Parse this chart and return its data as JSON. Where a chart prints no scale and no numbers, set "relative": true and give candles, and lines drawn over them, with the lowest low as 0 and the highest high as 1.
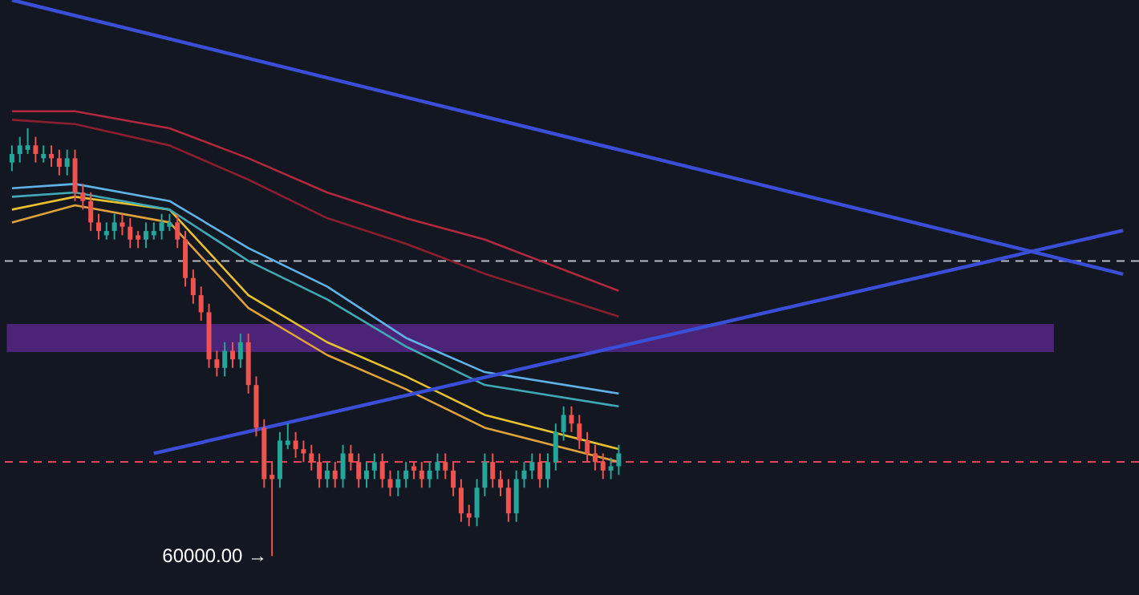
{
  "chart_data": {
    "type": "candlestick",
    "relative": true,
    "categories": [
      null,
      null,
      null,
      null,
      null,
      null,
      null,
      null,
      null,
      null,
      null,
      null,
      null,
      null,
      null,
      null,
      null,
      null,
      null,
      null,
      null,
      null,
      null,
      null,
      null,
      null,
      null,
      null,
      null,
      null,
      null,
      null,
      null,
      null,
      null,
      null,
      null,
      null,
      null,
      null,
      null,
      null,
      null,
      null,
      null,
      null,
      null,
      null,
      null,
      null,
      null,
      null,
      null,
      null,
      null,
      null,
      null,
      null,
      null,
      null,
      null,
      null,
      null,
      null,
      null,
      null,
      null,
      null,
      null,
      null,
      null,
      null,
      null,
      null,
      null,
      null,
      null,
      null
    ],
    "ohlc": [
      [
        0.92,
        0.96,
        0.9,
        0.94
      ],
      [
        0.94,
        0.98,
        0.92,
        0.96
      ],
      [
        0.95,
        1.0,
        0.94,
        0.96
      ],
      [
        0.96,
        0.98,
        0.92,
        0.94
      ],
      [
        0.93,
        0.96,
        0.92,
        0.94
      ],
      [
        0.94,
        0.96,
        0.91,
        0.93
      ],
      [
        0.93,
        0.95,
        0.89,
        0.91
      ],
      [
        0.91,
        0.95,
        0.89,
        0.93
      ],
      [
        0.93,
        0.95,
        0.83,
        0.85
      ],
      [
        0.85,
        0.87,
        0.81,
        0.83
      ],
      [
        0.83,
        0.85,
        0.76,
        0.78
      ],
      [
        0.78,
        0.8,
        0.74,
        0.76
      ],
      [
        0.75,
        0.78,
        0.74,
        0.76
      ],
      [
        0.76,
        0.8,
        0.74,
        0.78
      ],
      [
        0.78,
        0.8,
        0.75,
        0.77
      ],
      [
        0.77,
        0.79,
        0.72,
        0.74
      ],
      [
        0.75,
        0.76,
        0.72,
        0.74
      ],
      [
        0.74,
        0.78,
        0.72,
        0.76
      ],
      [
        0.75,
        0.78,
        0.74,
        0.76
      ],
      [
        0.76,
        0.8,
        0.74,
        0.78
      ],
      [
        0.77,
        0.8,
        0.76,
        0.78
      ],
      [
        0.78,
        0.8,
        0.72,
        0.74
      ],
      [
        0.74,
        0.76,
        0.63,
        0.65
      ],
      [
        0.65,
        0.67,
        0.59,
        0.61
      ],
      [
        0.61,
        0.63,
        0.55,
        0.57
      ],
      [
        0.57,
        0.59,
        0.44,
        0.46
      ],
      [
        0.46,
        0.48,
        0.42,
        0.44
      ],
      [
        0.44,
        0.5,
        0.42,
        0.48
      ],
      [
        0.48,
        0.5,
        0.44,
        0.46
      ],
      [
        0.46,
        0.52,
        0.44,
        0.5
      ],
      [
        0.5,
        0.52,
        0.38,
        0.4
      ],
      [
        0.4,
        0.42,
        0.28,
        0.3
      ],
      [
        0.3,
        0.32,
        0.16,
        0.18
      ],
      [
        0.19,
        0.22,
        0.0,
        0.18
      ],
      [
        0.18,
        0.29,
        0.16,
        0.27
      ],
      [
        0.26,
        0.31,
        0.25,
        0.27
      ],
      [
        0.27,
        0.29,
        0.23,
        0.25
      ],
      [
        0.25,
        0.27,
        0.22,
        0.24
      ],
      [
        0.24,
        0.26,
        0.2,
        0.22
      ],
      [
        0.22,
        0.24,
        0.16,
        0.18
      ],
      [
        0.18,
        0.22,
        0.16,
        0.2
      ],
      [
        0.2,
        0.22,
        0.16,
        0.18
      ],
      [
        0.18,
        0.26,
        0.16,
        0.24
      ],
      [
        0.24,
        0.26,
        0.2,
        0.22
      ],
      [
        0.22,
        0.24,
        0.16,
        0.18
      ],
      [
        0.18,
        0.22,
        0.16,
        0.2
      ],
      [
        0.2,
        0.24,
        0.18,
        0.22
      ],
      [
        0.22,
        0.24,
        0.16,
        0.18
      ],
      [
        0.18,
        0.2,
        0.14,
        0.16
      ],
      [
        0.16,
        0.2,
        0.14,
        0.18
      ],
      [
        0.18,
        0.22,
        0.16,
        0.2
      ],
      [
        0.21,
        0.22,
        0.18,
        0.2
      ],
      [
        0.2,
        0.22,
        0.16,
        0.18
      ],
      [
        0.18,
        0.22,
        0.16,
        0.2
      ],
      [
        0.2,
        0.24,
        0.18,
        0.22
      ],
      [
        0.22,
        0.24,
        0.18,
        0.2
      ],
      [
        0.2,
        0.22,
        0.14,
        0.16
      ],
      [
        0.16,
        0.18,
        0.08,
        0.1
      ],
      [
        0.1,
        0.12,
        0.07,
        0.09
      ],
      [
        0.09,
        0.18,
        0.07,
        0.16
      ],
      [
        0.16,
        0.24,
        0.14,
        0.22
      ],
      [
        0.22,
        0.24,
        0.16,
        0.18
      ],
      [
        0.18,
        0.2,
        0.14,
        0.16
      ],
      [
        0.16,
        0.18,
        0.08,
        0.1
      ],
      [
        0.1,
        0.2,
        0.08,
        0.18
      ],
      [
        0.18,
        0.22,
        0.16,
        0.2
      ],
      [
        0.2,
        0.24,
        0.18,
        0.22
      ],
      [
        0.22,
        0.24,
        0.16,
        0.18
      ],
      [
        0.18,
        0.24,
        0.16,
        0.22
      ],
      [
        0.22,
        0.31,
        0.2,
        0.29
      ],
      [
        0.29,
        0.35,
        0.27,
        0.33
      ],
      [
        0.33,
        0.35,
        0.29,
        0.31
      ],
      [
        0.31,
        0.33,
        0.25,
        0.27
      ],
      [
        0.27,
        0.29,
        0.22,
        0.24
      ],
      [
        0.24,
        0.26,
        0.2,
        0.22
      ],
      [
        0.22,
        0.24,
        0.18,
        0.2
      ],
      [
        0.2,
        0.23,
        0.18,
        0.21
      ],
      [
        0.21,
        0.26,
        0.19,
        0.24
      ]
    ],
    "series": [
      {
        "type": "line",
        "color": "#e8c22e",
        "values": [
          0.81,
          null,
          null,
          null,
          null,
          null,
          null,
          null,
          0.84,
          null,
          null,
          null,
          null,
          null,
          null,
          null,
          null,
          null,
          null,
          null,
          0.81,
          null,
          null,
          null,
          null,
          null,
          null,
          null,
          null,
          null,
          0.61,
          null,
          null,
          null,
          null,
          null,
          null,
          null,
          null,
          null,
          0.5,
          null,
          null,
          null,
          null,
          null,
          null,
          null,
          null,
          null,
          0.42,
          null,
          null,
          null,
          null,
          null,
          null,
          null,
          null,
          null,
          0.33,
          null,
          null,
          null,
          null,
          null,
          null,
          null,
          null,
          null,
          null,
          null,
          null,
          null,
          null,
          null,
          null,
          0.25
        ]
      },
      {
        "type": "line",
        "color": "#e0a23a",
        "values": [
          0.78,
          null,
          null,
          null,
          null,
          null,
          null,
          null,
          0.82,
          null,
          null,
          null,
          null,
          null,
          null,
          null,
          null,
          null,
          null,
          null,
          0.78,
          null,
          null,
          null,
          null,
          null,
          null,
          null,
          null,
          null,
          0.58,
          null,
          null,
          null,
          null,
          null,
          null,
          null,
          null,
          null,
          0.47,
          null,
          null,
          null,
          null,
          null,
          null,
          null,
          null,
          null,
          0.39,
          null,
          null,
          null,
          null,
          null,
          null,
          null,
          null,
          null,
          0.3,
          null,
          null,
          null,
          null,
          null,
          null,
          null,
          null,
          null,
          null,
          null,
          null,
          null,
          null,
          null,
          null,
          0.22
        ]
      },
      {
        "type": "line",
        "color": "#5fb3e8",
        "values": [
          0.86,
          null,
          null,
          null,
          null,
          null,
          null,
          null,
          0.87,
          null,
          null,
          null,
          null,
          null,
          null,
          null,
          null,
          null,
          null,
          null,
          0.83,
          null,
          null,
          null,
          null,
          null,
          null,
          null,
          null,
          null,
          0.72,
          null,
          null,
          null,
          null,
          null,
          null,
          null,
          null,
          null,
          0.63,
          null,
          null,
          null,
          null,
          null,
          null,
          null,
          null,
          null,
          0.51,
          null,
          null,
          null,
          null,
          null,
          null,
          null,
          null,
          null,
          0.43,
          null,
          null,
          null,
          null,
          null,
          null,
          null,
          null,
          null,
          null,
          null,
          null,
          null,
          null,
          null,
          null,
          0.38
        ]
      },
      {
        "type": "line",
        "color": "#3fa9b5",
        "values": [
          0.84,
          null,
          null,
          null,
          null,
          null,
          null,
          null,
          0.85,
          null,
          null,
          null,
          null,
          null,
          null,
          null,
          null,
          null,
          null,
          null,
          0.81,
          null,
          null,
          null,
          null,
          null,
          null,
          null,
          null,
          null,
          0.69,
          null,
          null,
          null,
          null,
          null,
          null,
          null,
          null,
          null,
          0.6,
          null,
          null,
          null,
          null,
          null,
          null,
          null,
          null,
          null,
          0.49,
          null,
          null,
          null,
          null,
          null,
          null,
          null,
          null,
          null,
          0.4,
          null,
          null,
          null,
          null,
          null,
          null,
          null,
          null,
          null,
          null,
          null,
          null,
          null,
          null,
          null,
          null,
          0.35
        ]
      },
      {
        "type": "line",
        "color": "#b0293c",
        "values": [
          1.04,
          null,
          null,
          null,
          null,
          null,
          null,
          null,
          1.04,
          null,
          null,
          null,
          null,
          null,
          null,
          null,
          null,
          null,
          null,
          null,
          1.0,
          null,
          null,
          null,
          null,
          null,
          null,
          null,
          null,
          null,
          0.93,
          null,
          null,
          null,
          null,
          null,
          null,
          null,
          null,
          null,
          0.85,
          null,
          null,
          null,
          null,
          null,
          null,
          null,
          null,
          null,
          0.79,
          null,
          null,
          null,
          null,
          null,
          null,
          null,
          null,
          null,
          0.74,
          null,
          null,
          null,
          null,
          null,
          null,
          null,
          null,
          null,
          null,
          null,
          null,
          null,
          null,
          null,
          null,
          0.62
        ]
      },
      {
        "type": "line",
        "color": "#8a1f2e",
        "values": [
          1.02,
          null,
          null,
          null,
          null,
          null,
          null,
          null,
          1.01,
          null,
          null,
          null,
          null,
          null,
          null,
          null,
          null,
          null,
          null,
          null,
          0.96,
          null,
          null,
          null,
          null,
          null,
          null,
          null,
          null,
          null,
          0.88,
          null,
          null,
          null,
          null,
          null,
          null,
          null,
          null,
          null,
          0.79,
          null,
          null,
          null,
          null,
          null,
          null,
          null,
          null,
          null,
          0.73,
          null,
          null,
          null,
          null,
          null,
          null,
          null,
          null,
          null,
          0.66,
          null,
          null,
          null,
          null,
          null,
          null,
          null,
          null,
          null,
          null,
          null,
          null,
          null,
          null,
          null,
          null,
          0.56
        ]
      },
      {
        "type": "line",
        "color": "#3a4fd8",
        "values": [
          1.3,
          null,
          null,
          null,
          null,
          null,
          null,
          null,
          null,
          null,
          null,
          null,
          null,
          null,
          null,
          null,
          null,
          null,
          null,
          null,
          null,
          null,
          null,
          null,
          null,
          null,
          null,
          null,
          null,
          null,
          null,
          null,
          null,
          null,
          null,
          null,
          null,
          null,
          null,
          null,
          null,
          null,
          null,
          null,
          null,
          null,
          null,
          null,
          null,
          null,
          null,
          null,
          null,
          null,
          null,
          null,
          null,
          null,
          null,
          null,
          null,
          null,
          null,
          null,
          null,
          null,
          null,
          null,
          null,
          null,
          null,
          null,
          null,
          null,
          null,
          null,
          null,
          0.95
        ]
      },
      {
        "type": "line",
        "color": "#3a4fd8",
        "values": [
          null,
          null,
          null,
          null,
          null,
          null,
          null,
          null,
          null,
          null,
          null,
          null,
          null,
          null,
          null,
          null,
          null,
          null,
          0.24,
          null,
          null,
          null,
          null,
          null,
          null,
          null,
          null,
          null,
          null,
          null,
          null,
          null,
          null,
          null,
          null,
          null,
          null,
          null,
          null,
          null,
          null,
          null,
          null,
          null,
          null,
          null,
          null,
          null,
          null,
          null,
          null,
          null,
          null,
          null,
          null,
          null,
          null,
          null,
          null,
          null,
          null,
          null,
          null,
          null,
          null,
          null,
          null,
          null,
          null,
          null,
          null,
          null,
          null,
          null,
          null,
          null,
          null,
          0.49
        ]
      }
    ],
    "ref_lines": [
      {
        "axis": "y",
        "value": 0.69,
        "color": "#b8bcc8",
        "line_style": "dashed"
      },
      {
        "axis": "y",
        "value": 0.22,
        "color": "#e0435a",
        "line_style": "dashed"
      }
    ],
    "bands": [
      {
        "axis": "y",
        "from": 0.48,
        "to": 0.54,
        "color": "#7b2fbe"
      }
    ],
    "annotations": [
      "60000.00 →"
    ]
  }
}
